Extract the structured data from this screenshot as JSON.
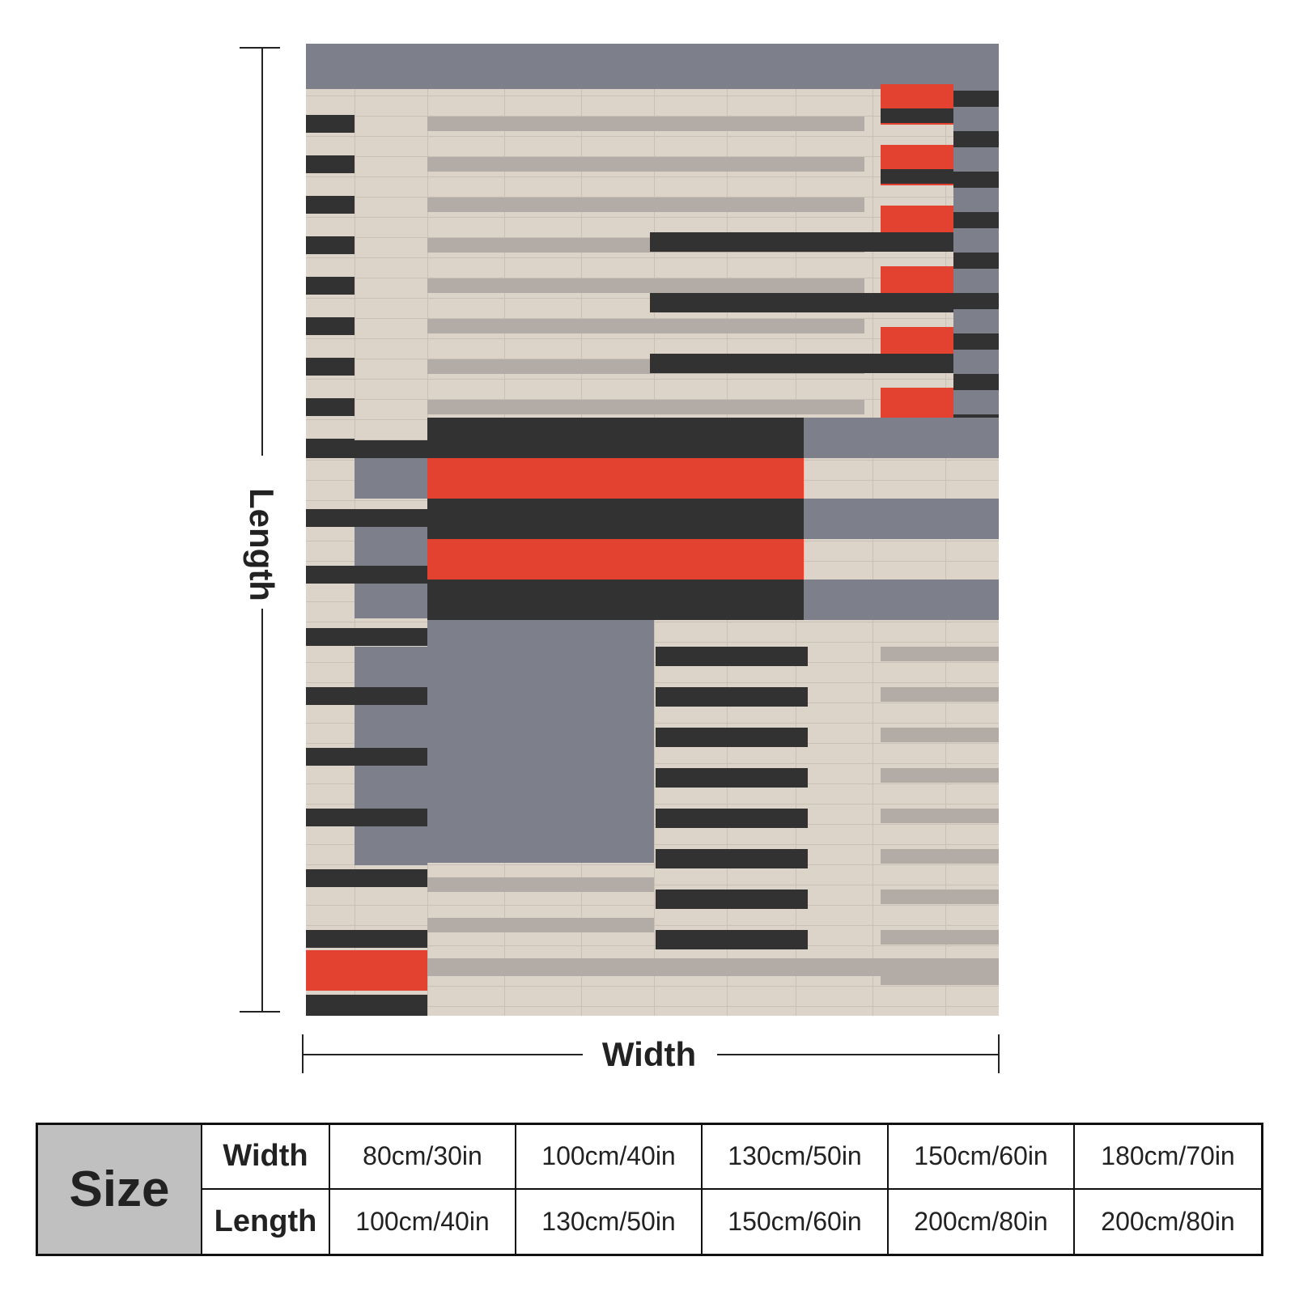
{
  "artwork": {
    "colors": {
      "beige": "#dcd4c8",
      "stripe": "#b3aca6",
      "black": "#333232",
      "red": "#e2422f",
      "blue": "#7d808a",
      "grid": "#c9c1b5"
    }
  },
  "dimensions": {
    "length_label": "Length",
    "width_label": "Width"
  },
  "size_table": {
    "header": "Size",
    "width_label": "Width",
    "length_label": "Length",
    "widths": [
      "80cm/30in",
      "100cm/40in",
      "130cm/50in",
      "150cm/60in",
      "180cm/70in"
    ],
    "lengths": [
      "100cm/40in",
      "130cm/50in",
      "150cm/60in",
      "200cm/80in",
      "200cm/80in"
    ]
  }
}
